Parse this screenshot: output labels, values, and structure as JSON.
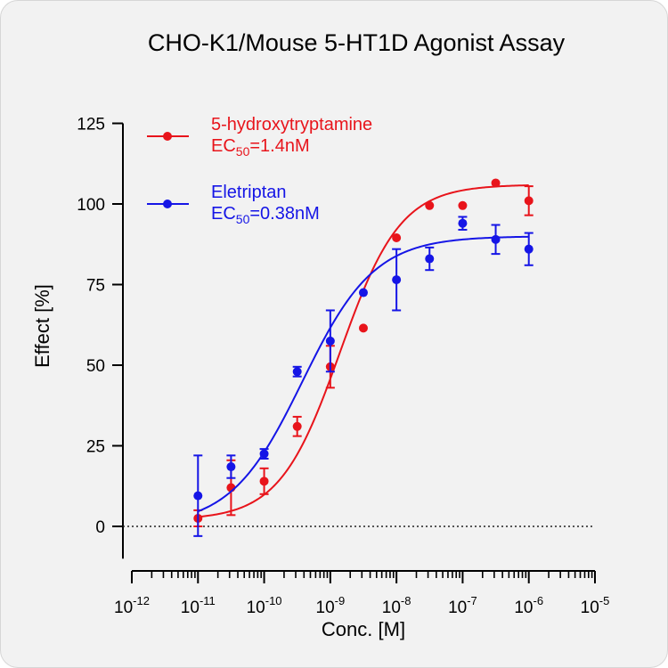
{
  "chart_data": {
    "type": "scatter",
    "title": "CHO-K1/Mouse 5-HT1D Agonist Assay",
    "xlabel": "Conc. [M]",
    "ylabel": "Effect  [%]",
    "x_scale": "log",
    "xlim": [
      1e-12,
      1e-05
    ],
    "ylim": [
      -10,
      125
    ],
    "x_ticks": [
      {
        "base": "10",
        "exp": "-12",
        "value": 1e-12
      },
      {
        "base": "10",
        "exp": "-11",
        "value": 1e-11
      },
      {
        "base": "10",
        "exp": "-10",
        "value": 1e-10
      },
      {
        "base": "10",
        "exp": "-9",
        "value": 1e-09
      },
      {
        "base": "10",
        "exp": "-8",
        "value": 1e-08
      },
      {
        "base": "10",
        "exp": "-7",
        "value": 1e-07
      },
      {
        "base": "10",
        "exp": "-6",
        "value": 1e-06
      },
      {
        "base": "10",
        "exp": "-5",
        "value": 1e-05
      }
    ],
    "y_ticks": [
      "0",
      "25",
      "50",
      "75",
      "100",
      "125"
    ],
    "zero_line": true,
    "grid": false,
    "legend_position": "top-left",
    "series": [
      {
        "name": "5-hydroxytryptamine",
        "ec50_label": {
          "prefix": "EC",
          "sub": "50",
          "suffix": "=1.4nM"
        },
        "color": "#e8141b",
        "fit": {
          "bottom": 2,
          "top": 106,
          "ec50": 1.4e-09,
          "hill": 0.95
        },
        "points": [
          {
            "x": 1e-11,
            "y": 2.5,
            "err": 2.5
          },
          {
            "x": 3.16e-11,
            "y": 12,
            "err": 8.5
          },
          {
            "x": 1e-10,
            "y": 14,
            "err": 4
          },
          {
            "x": 3.16e-10,
            "y": 31,
            "err": 3
          },
          {
            "x": 1e-09,
            "y": 49.5,
            "err": 6.5
          },
          {
            "x": 3.16e-09,
            "y": 61.5,
            "err": 0
          },
          {
            "x": 1e-08,
            "y": 89.5,
            "err": 0
          },
          {
            "x": 3.16e-08,
            "y": 99.5,
            "err": 0
          },
          {
            "x": 1e-07,
            "y": 99.5,
            "err": 0
          },
          {
            "x": 3.16e-07,
            "y": 106.5,
            "err": 0
          },
          {
            "x": 1e-06,
            "y": 101,
            "err": 4.5
          }
        ]
      },
      {
        "name": "Eletriptan",
        "ec50_label": {
          "prefix": "EC",
          "sub": "50",
          "suffix": "=0.38nM"
        },
        "color": "#1515e6",
        "fit": {
          "bottom": 0,
          "top": 90,
          "ec50": 3.8e-10,
          "hill": 0.8
        },
        "points": [
          {
            "x": 1e-11,
            "y": 9.5,
            "err": 12.5
          },
          {
            "x": 3.16e-11,
            "y": 18.5,
            "err": 3.5
          },
          {
            "x": 1e-10,
            "y": 22.5,
            "err": 1.5
          },
          {
            "x": 3.16e-10,
            "y": 48,
            "err": 1.5
          },
          {
            "x": 1e-09,
            "y": 57.5,
            "err": 9.5
          },
          {
            "x": 3.16e-09,
            "y": 72.5,
            "err": 0
          },
          {
            "x": 1e-08,
            "y": 76.5,
            "err": 9.5
          },
          {
            "x": 3.16e-08,
            "y": 83,
            "err": 3.5
          },
          {
            "x": 1e-07,
            "y": 94,
            "err": 2
          },
          {
            "x": 3.16e-07,
            "y": 89,
            "err": 4.5
          },
          {
            "x": 1e-06,
            "y": 86,
            "err": 5
          }
        ]
      }
    ]
  }
}
